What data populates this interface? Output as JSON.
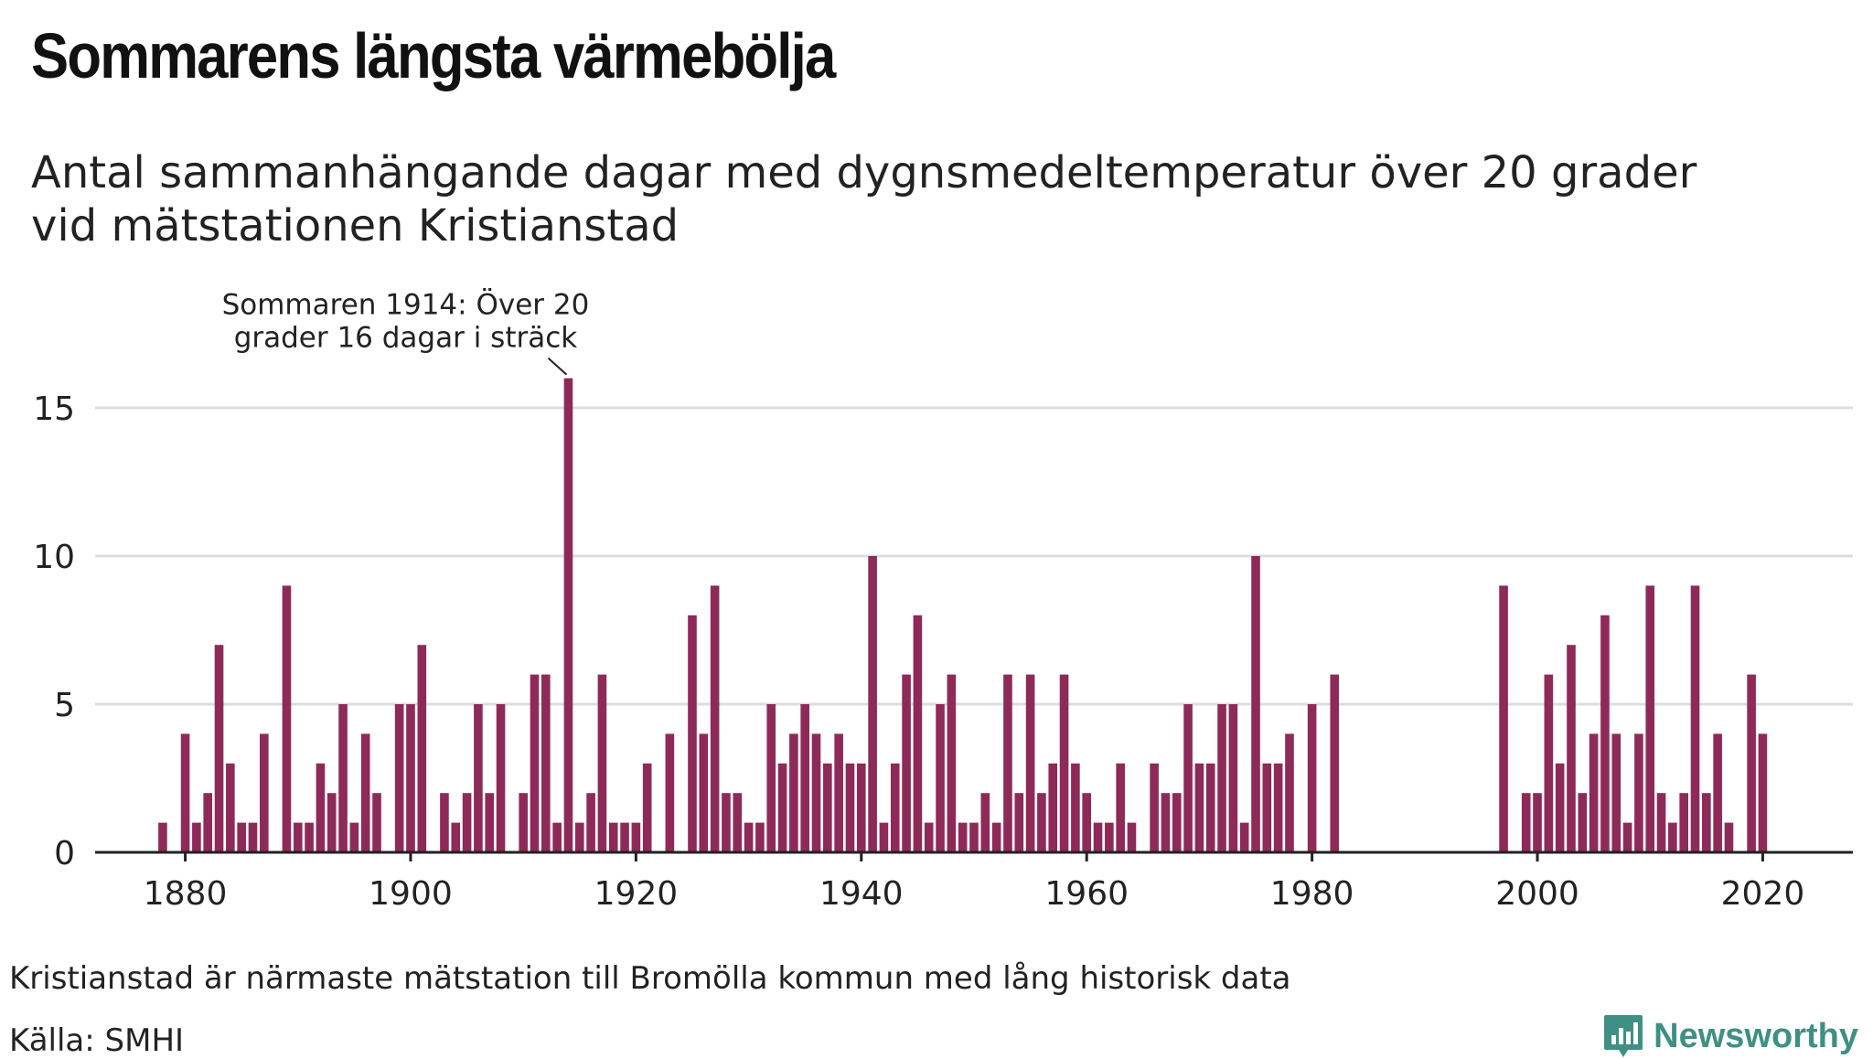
{
  "title": "Sommarens längsta värmebölja",
  "subtitle_lines": [
    "Antal sammanhängande dagar med dygnsmedeltemperatur över 20 grader",
    "vid mätstationen Kristianstad"
  ],
  "footnote": "Kristianstad är närmaste mätstation till Bromölla kommun med lång historisk data",
  "source": "Källa: SMHI",
  "brand": "Newsworthy",
  "colors": {
    "bar": "#8e2a58",
    "grid": "#dddddd",
    "axis": "#222222",
    "brand": "#3f8f84"
  },
  "chart_data": {
    "type": "bar",
    "title": "Sommarens längsta värmebölja",
    "xlabel": "",
    "ylabel": "",
    "xlim": [
      1872,
      2028
    ],
    "ylim": [
      0,
      17
    ],
    "yticks": [
      0,
      5,
      10,
      15
    ],
    "xticks": [
      1880,
      1900,
      1920,
      1940,
      1960,
      1980,
      2000,
      2020
    ],
    "grid": true,
    "annotation": {
      "x": 1914,
      "lines": [
        "Sommaren 1914: Över 20",
        "grader 16 dagar i sträck"
      ]
    },
    "x": [
      1878,
      1879,
      1880,
      1881,
      1882,
      1883,
      1884,
      1885,
      1886,
      1887,
      1888,
      1889,
      1890,
      1891,
      1892,
      1893,
      1894,
      1895,
      1896,
      1897,
      1898,
      1899,
      1900,
      1901,
      1902,
      1903,
      1904,
      1905,
      1906,
      1907,
      1908,
      1909,
      1910,
      1911,
      1912,
      1913,
      1914,
      1915,
      1916,
      1917,
      1918,
      1919,
      1920,
      1921,
      1922,
      1923,
      1924,
      1925,
      1926,
      1927,
      1928,
      1929,
      1930,
      1931,
      1932,
      1933,
      1934,
      1935,
      1936,
      1937,
      1938,
      1939,
      1940,
      1941,
      1942,
      1943,
      1944,
      1945,
      1946,
      1947,
      1948,
      1949,
      1950,
      1951,
      1952,
      1953,
      1954,
      1955,
      1956,
      1957,
      1958,
      1959,
      1960,
      1961,
      1962,
      1963,
      1964,
      1965,
      1966,
      1967,
      1968,
      1969,
      1970,
      1971,
      1972,
      1973,
      1974,
      1975,
      1976,
      1977,
      1978,
      1979,
      1980,
      1981,
      1982,
      1983,
      1984,
      1985,
      1986,
      1987,
      1988,
      1989,
      1990,
      1991,
      1992,
      1993,
      1994,
      1995,
      1996,
      1997,
      1998,
      1999,
      2000,
      2001,
      2002,
      2003,
      2004,
      2005,
      2006,
      2007,
      2008,
      2009,
      2010,
      2011,
      2012,
      2013,
      2014,
      2015,
      2016,
      2017,
      2018,
      2019,
      2020
    ],
    "values": [
      1,
      0,
      4,
      1,
      2,
      7,
      3,
      1,
      1,
      4,
      0,
      9,
      1,
      1,
      3,
      2,
      5,
      1,
      4,
      2,
      0,
      5,
      5,
      7,
      0,
      2,
      1,
      2,
      5,
      2,
      5,
      0,
      2,
      6,
      6,
      1,
      16,
      1,
      2,
      6,
      1,
      1,
      1,
      3,
      0,
      4,
      0,
      8,
      4,
      9,
      2,
      2,
      1,
      1,
      5,
      3,
      4,
      5,
      4,
      3,
      4,
      3,
      3,
      10,
      1,
      3,
      6,
      8,
      1,
      5,
      6,
      1,
      1,
      2,
      1,
      6,
      2,
      6,
      2,
      3,
      6,
      3,
      2,
      1,
      1,
      3,
      1,
      0,
      3,
      2,
      2,
      5,
      3,
      3,
      5,
      5,
      1,
      10,
      3,
      3,
      4,
      0,
      5,
      0,
      6,
      0,
      0,
      0,
      0,
      0,
      0,
      0,
      0,
      0,
      0,
      0,
      0,
      0,
      0,
      9,
      0,
      2,
      2,
      6,
      3,
      7,
      2,
      4,
      8,
      4,
      1,
      4,
      9,
      2,
      1,
      2,
      9,
      2,
      4,
      1,
      0,
      6,
      4
    ]
  }
}
